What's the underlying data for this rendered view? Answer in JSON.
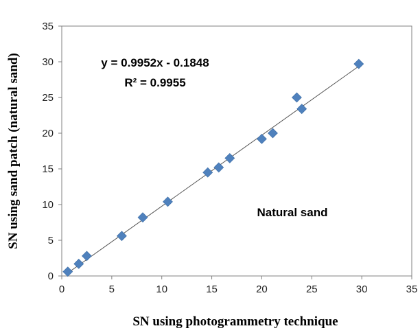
{
  "chart_data": {
    "type": "scatter",
    "title": "",
    "xlabel": "SN using photogrammetry technique",
    "ylabel": "SN using sand patch (natural sand)",
    "xlim": [
      0,
      35
    ],
    "ylim": [
      0,
      35
    ],
    "xticks": [
      "0",
      "5",
      "10",
      "15",
      "20",
      "25",
      "30",
      "35"
    ],
    "yticks": [
      "0",
      "5",
      "10",
      "15",
      "20",
      "25",
      "30",
      "35"
    ],
    "grid": false,
    "legend": "none",
    "marker": "diamond",
    "marker_color": "#4f81bd",
    "trendline_color": "#555555",
    "series": [
      {
        "points": [
          [
            0.6,
            0.6
          ],
          [
            1.7,
            1.7
          ],
          [
            2.5,
            2.8
          ],
          [
            6.0,
            5.6
          ],
          [
            8.1,
            8.2
          ],
          [
            10.6,
            10.4
          ],
          [
            14.6,
            14.5
          ],
          [
            15.7,
            15.2
          ],
          [
            16.8,
            16.5
          ],
          [
            20.0,
            19.2
          ],
          [
            21.1,
            20.0
          ],
          [
            23.5,
            25.0
          ],
          [
            24.0,
            23.4
          ],
          [
            29.7,
            29.7
          ]
        ]
      }
    ],
    "trendline": {
      "slope": 0.9952,
      "intercept": -0.1848,
      "x_range": [
        0.6,
        29.7
      ]
    },
    "annotations": {
      "equation": "y = 0.9952x - 0.1848",
      "r_squared": "R² = 0.9955",
      "label": "Natural sand"
    }
  }
}
